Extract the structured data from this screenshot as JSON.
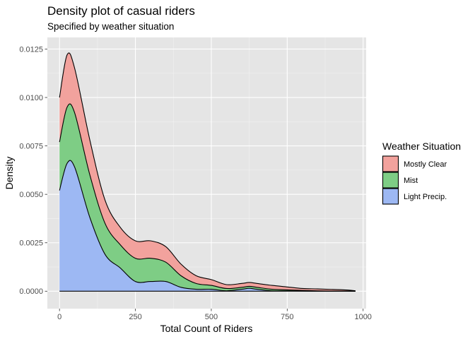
{
  "chart_data": {
    "type": "area",
    "subtype": "stacked density",
    "title": "Density plot of casual riders",
    "subtitle": "Specified by weather situation",
    "xlabel": "Total Count of Riders",
    "ylabel": "Density",
    "xlim": [
      -40,
      1010
    ],
    "ylim": [
      -0.0009,
      0.0131
    ],
    "x_ticks": [
      0,
      250,
      500,
      750,
      1000
    ],
    "x_tick_labels": [
      "0",
      "250",
      "500",
      "750",
      "1000"
    ],
    "y_ticks": [
      0,
      0.0025,
      0.005,
      0.0075,
      0.01,
      0.0125
    ],
    "y_tick_labels": [
      "0.0000",
      "0.0025",
      "0.0050",
      "0.0075",
      "0.0100",
      "0.0125"
    ],
    "grid": true,
    "background": "#e5e5e5",
    "legend": {
      "title": "Weather Situation",
      "position": "right",
      "entries": [
        "Mostly Clear",
        "Mist",
        "Light Precip."
      ]
    },
    "x": [
      0,
      25,
      50,
      100,
      150,
      200,
      250,
      300,
      350,
      400,
      450,
      500,
      550,
      600,
      625,
      650,
      700,
      750,
      800,
      850,
      900,
      950,
      975
    ],
    "series": [
      {
        "name": "Mostly Clear",
        "color": "#f8766d",
        "fill": "#f2a29d",
        "values": [
          0.0023,
          0.0027,
          0.0023,
          0.0018,
          0.0012,
          0.0009,
          0.0009,
          0.0009,
          0.0008,
          0.0006,
          0.0004,
          0.0003,
          0.0002,
          0.0002,
          0.0002,
          0.0002,
          0.0002,
          0.00015,
          0.0001,
          0.0001,
          8e-05,
          5e-05,
          2e-05
        ]
      },
      {
        "name": "Mist",
        "color": "#00ba38",
        "fill": "#7ecd85",
        "values": [
          0.0025,
          0.0029,
          0.0028,
          0.0022,
          0.0016,
          0.0012,
          0.0012,
          0.0012,
          0.001,
          0.0006,
          0.0003,
          0.0002,
          0.00012,
          0.0001,
          0.0001,
          0.0001,
          8e-05,
          5e-05,
          3e-05,
          2e-05,
          1e-05,
          1e-05,
          0.0
        ]
      },
      {
        "name": "Light Precip.",
        "color": "#619cff",
        "fill": "#9db8f3",
        "values": [
          0.0052,
          0.0066,
          0.0064,
          0.0038,
          0.0019,
          0.0012,
          0.0005,
          0.0005,
          0.0005,
          0.0002,
          0.0001,
          0.0001,
          2e-05,
          0.0001,
          0.00015,
          0.0001,
          2e-05,
          2e-05,
          1e-05,
          0.0,
          0.0,
          0.0,
          0.0
        ]
      }
    ]
  }
}
